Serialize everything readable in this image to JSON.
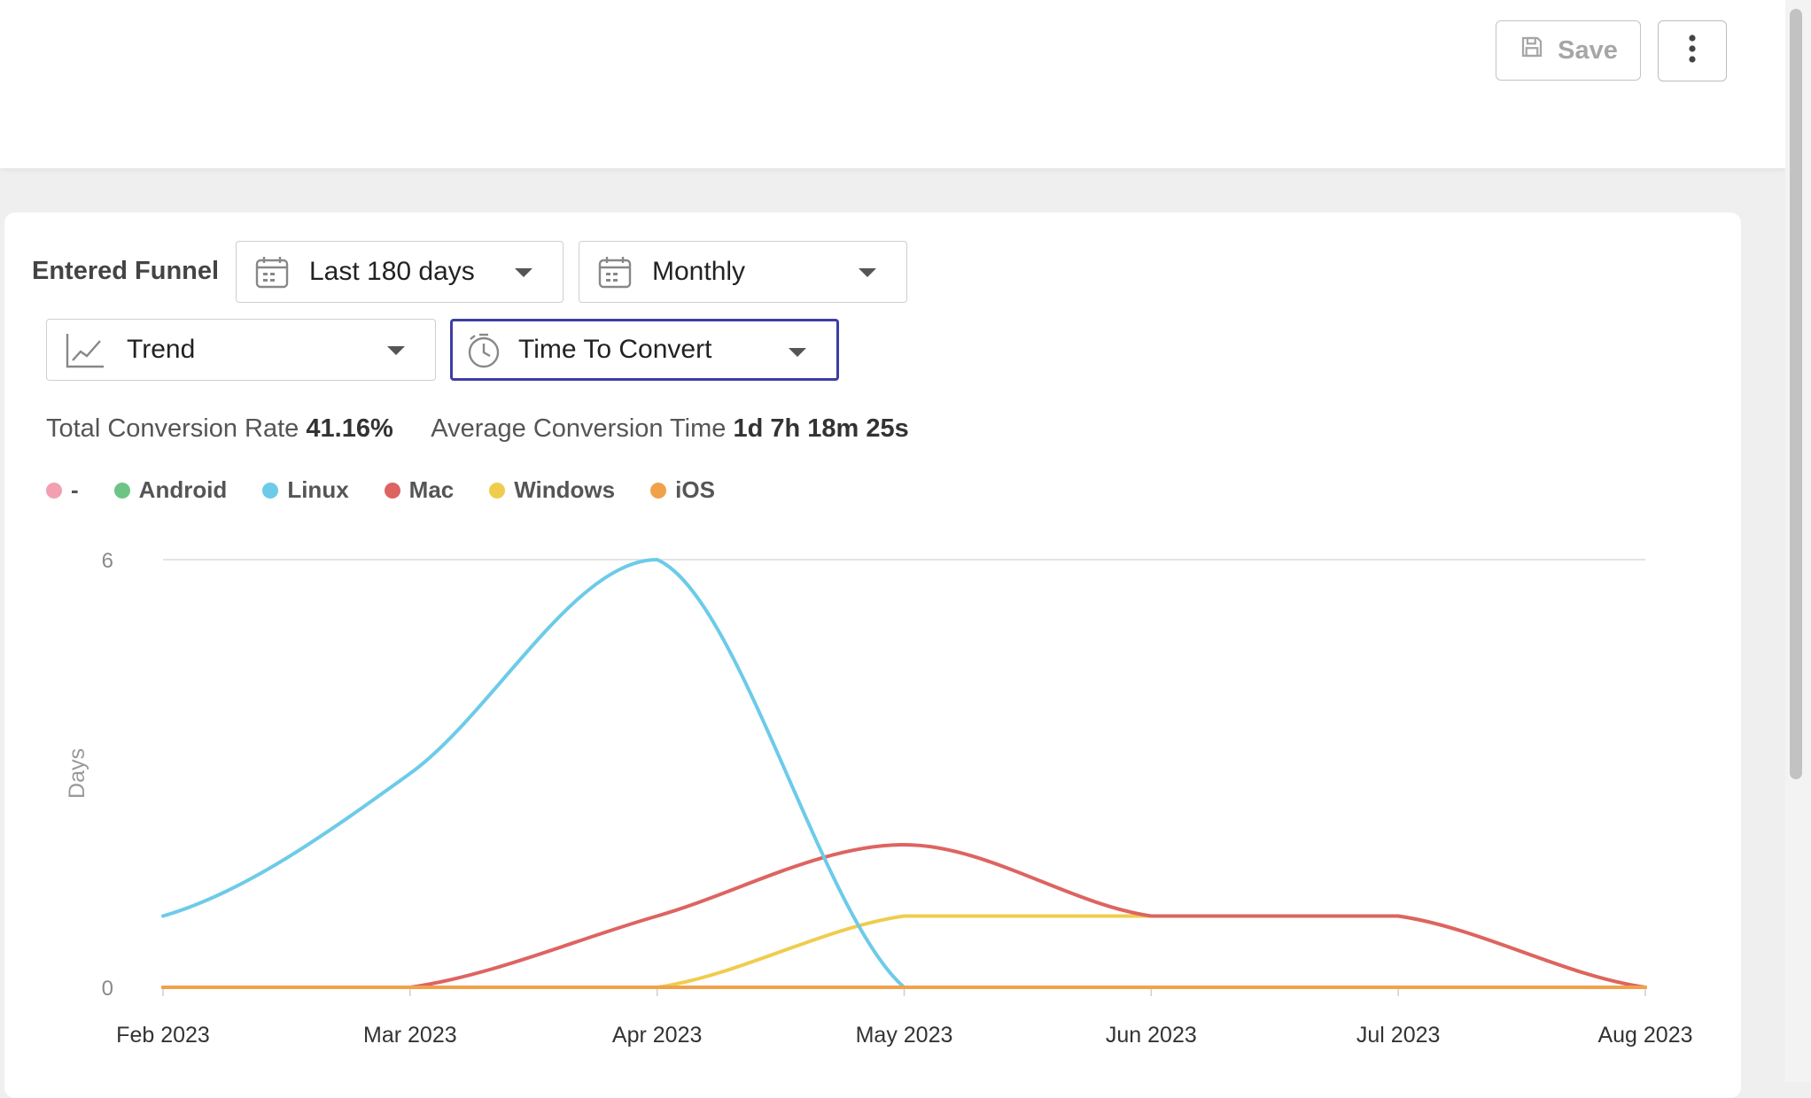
{
  "header": {
    "save_label": "Save"
  },
  "funnel": {
    "entered_label": "Entered Funnel",
    "range_label": "Last 180 days",
    "interval_label": "Monthly",
    "view_label": "Trend",
    "metric_label": "Time To Convert"
  },
  "stats": {
    "conversion_rate_label": "Total Conversion Rate",
    "conversion_rate_value": "41.16%",
    "avg_time_label": "Average Conversion Time",
    "avg_time_value": "1d 7h 18m 25s"
  },
  "icons": [
    "save-icon",
    "more-vertical-icon",
    "calendar-icon",
    "trend-chart-icon",
    "stopwatch-icon",
    "chevron-down-icon"
  ],
  "chart_data": {
    "type": "line",
    "curve": "smooth",
    "xlabel": "",
    "ylabel": "Days",
    "x": [
      "Feb 2023",
      "Mar 2023",
      "Apr 2023",
      "May 2023",
      "Jun 2023",
      "Jul 2023",
      "Aug 2023"
    ],
    "yticks": [
      0,
      6
    ],
    "ylim": [
      0,
      6
    ],
    "grid": "horizontal at max tick",
    "legend_position": "top-left",
    "series": [
      {
        "name": "-",
        "color": "#f2a0b0",
        "values": [
          0,
          0,
          0,
          0,
          0,
          0,
          0
        ]
      },
      {
        "name": "Android",
        "color": "#6cc584",
        "values": [
          0,
          0,
          0,
          0,
          0,
          0,
          0
        ]
      },
      {
        "name": "Linux",
        "color": "#6ccbe8",
        "values": [
          1,
          3,
          6,
          0,
          0,
          0,
          0
        ]
      },
      {
        "name": "Mac",
        "color": "#dd6461",
        "values": [
          0,
          0,
          1,
          2,
          1,
          1,
          0
        ]
      },
      {
        "name": "Windows",
        "color": "#f0cc4d",
        "values": [
          0,
          0,
          0,
          1,
          1,
          1,
          0
        ]
      },
      {
        "name": "iOS",
        "color": "#f0a24b",
        "values": [
          0,
          0,
          0,
          0,
          0,
          0,
          0
        ]
      }
    ]
  }
}
